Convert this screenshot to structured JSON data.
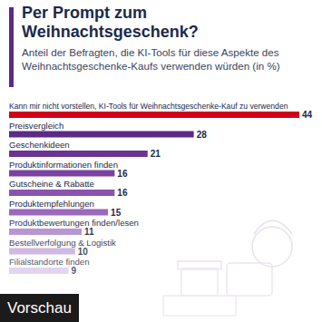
{
  "chart_data": {
    "type": "bar",
    "orientation": "horizontal",
    "title": "Per Prompt zum Weihnachtsgeschenk?",
    "subtitle": "Anteil der Befragten, die KI-Tools für diese Aspekte des Weihnachtsgeschenke-Kaufs verwenden würden (in %)",
    "categories": [
      "Kann mir nicht vorstellen, KI-Tools für Weihnachtsgeschenke-Kauf zu verwenden",
      "Preisvergleich",
      "Geschenkideen",
      "Produktinformationen finden",
      "Gutscheine & Rabatte",
      "Produktempfehlungen",
      "Produktbewertungen finden/lesen",
      "Bestellverfolgung & Logistik",
      "Filialstandorte finden"
    ],
    "values": [
      44,
      28,
      21,
      16,
      16,
      15,
      11,
      10,
      9
    ],
    "colors": [
      "#d0021b",
      "#5c2a86",
      "#6a3493",
      "#7a43a1",
      "#8953ae",
      "#9a66bb",
      "#b18ccc",
      "#c6abdb",
      "#d9c7e8"
    ],
    "xlim": [
      0,
      44
    ],
    "data_labels": true,
    "tick_labels": false,
    "grid": false,
    "annotations": [
      "Vorschau"
    ]
  }
}
